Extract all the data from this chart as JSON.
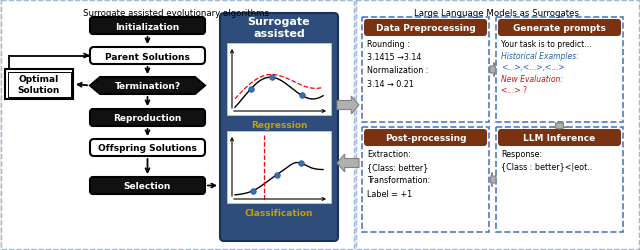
{
  "fig_width": 6.4,
  "fig_height": 2.51,
  "dpi": 100,
  "bg_color": "#ebebeb",
  "left_title": "Surrogate assisted evolutionary algorithms",
  "right_title": "Large Language Models as Surrogates",
  "surrogate_panel_bg": "#2e4d7b",
  "header_bg": "#7B3210",
  "flow_labels": [
    "Initialization",
    "Parent Solutions",
    "Termination?",
    "Reproduction",
    "Offspring Solutions",
    "Selection"
  ],
  "flow_filled": [
    true,
    false,
    true,
    true,
    false,
    true
  ],
  "optimal_label": "Optimal\nSolution",
  "surrogate_title": "Surrogate\nassisted",
  "regression_label": "Regression",
  "classification_label": "Classification",
  "dp_title": "Data Preprocessing",
  "dp_text": "Rounding :\n3.1415 →3.14\nNormalization :\n3.14 → 0.21",
  "gp_title": "Generate prompts",
  "gp_text_black": "Your task is to predict...",
  "gp_text_blue_label": "Historical Examples:",
  "gp_text_blue_val": "<...>,<...>,<...>",
  "gp_text_red_label": "New Evaluation:",
  "gp_text_red_val": "<...> ?",
  "pp_title": "Post-processing",
  "pp_text": "Extraction:\n{Class: better}\nTransformation:\nLabel = +1",
  "llm_title": "LLM Inference",
  "llm_text": "Response:\n{Class : better}<|eot..",
  "dashed_border_color": "#4f7abf",
  "fat_arrow_fc": "#b0b0b0",
  "fat_arrow_ec": "#808080"
}
